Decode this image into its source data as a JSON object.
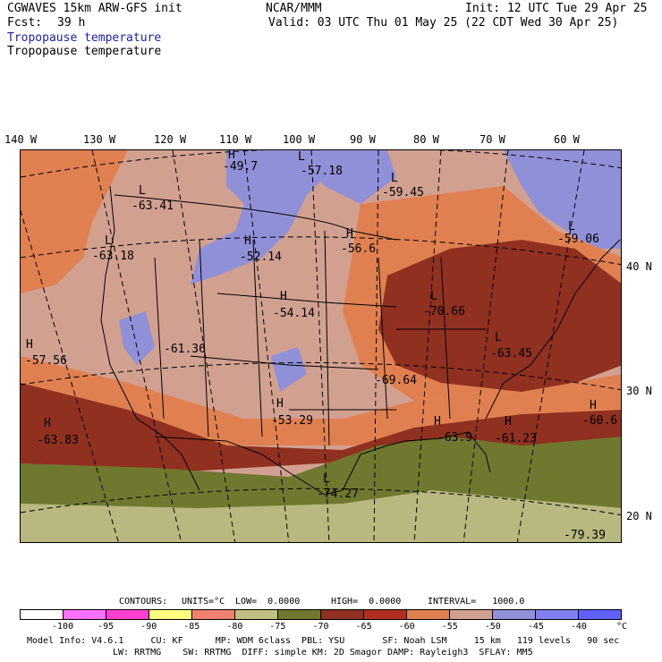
{
  "header": {
    "model": "CGWAVES 15km ARW-GFS init",
    "org": "NCAR/MMM",
    "init": "Init: 12 UTC Tue 29 Apr 25",
    "fcst_label": "Fcst:",
    "fcst_value": "39 h",
    "valid": "Valid: 03 UTC Thu 01 May 25 (22 CDT Wed 30 Apr 25)",
    "field_title_1": "Tropopause temperature",
    "field_title_2": "Tropopause temperature"
  },
  "axes": {
    "lon_labels": [
      "140 W",
      "130 W",
      "120 W",
      "110 W",
      "100 W",
      "90 W",
      "80 W",
      "70 W",
      "60 W"
    ],
    "lat_labels": [
      "40 N",
      "30 N",
      "20 N"
    ]
  },
  "map_labels": [
    {
      "kind": "H",
      "value": "-49.7"
    },
    {
      "kind": "L",
      "value": "-57.18"
    },
    {
      "kind": "L",
      "value": "-59.45"
    },
    {
      "kind": "L",
      "value": "-63.41"
    },
    {
      "kind": "H",
      "value": "-52.14"
    },
    {
      "kind": "H",
      "value": "-56.6"
    },
    {
      "kind": "L",
      "value": "-59.06"
    },
    {
      "kind": "L",
      "value": "-63.18"
    },
    {
      "kind": "H",
      "value": "-54.14"
    },
    {
      "kind": "L",
      "value": "-70.66"
    },
    {
      "kind": "H",
      "value": "-57.56"
    },
    {
      "kind": "",
      "value": "-61.36"
    },
    {
      "kind": "L",
      "value": "-63.45"
    },
    {
      "kind": "",
      "value": "-69.64"
    },
    {
      "kind": "H",
      "value": "-53.29"
    },
    {
      "kind": "H",
      "value": "-60.6"
    },
    {
      "kind": "H",
      "value": "-63.83"
    },
    {
      "kind": "H",
      "value": "-63.9"
    },
    {
      "kind": "H",
      "value": "-61.23"
    },
    {
      "kind": "L",
      "value": "-74.27"
    },
    {
      "kind": "",
      "value": "-79.39"
    }
  ],
  "contours": {
    "label": "CONTOURS:",
    "units": "UNITS=°C",
    "low": "LOW=  0.0000",
    "high": "HIGH=  0.0000",
    "interval": "INTERVAL=   1000.0"
  },
  "legend": {
    "colors": [
      "#ffffff",
      "#ff70ff",
      "#ff40d0",
      "#ffff80",
      "#f08070",
      "#c0c080",
      "#707830",
      "#903020",
      "#b03020",
      "#e08050",
      "#d0a090",
      "#9090d8",
      "#8080f0",
      "#6060ff"
    ],
    "ticks": [
      "-100",
      "-95",
      "-90",
      "-85",
      "-80",
      "-75",
      "-70",
      "-65",
      "-60",
      "-55",
      "-50",
      "-45",
      "-40"
    ],
    "unit": "°C"
  },
  "footer": {
    "line1": "Model Info: V4.6.1     CU: KF      MP: WDM 6class  PBL: YSU       SF: Noah LSM     15 km   119 levels   90 sec",
    "line2": "LW: RRTMG    SW: RRTMG  DIFF: simple KM: 2D Smagor DAMP: Rayleigh3  SFLAY: MM5"
  }
}
